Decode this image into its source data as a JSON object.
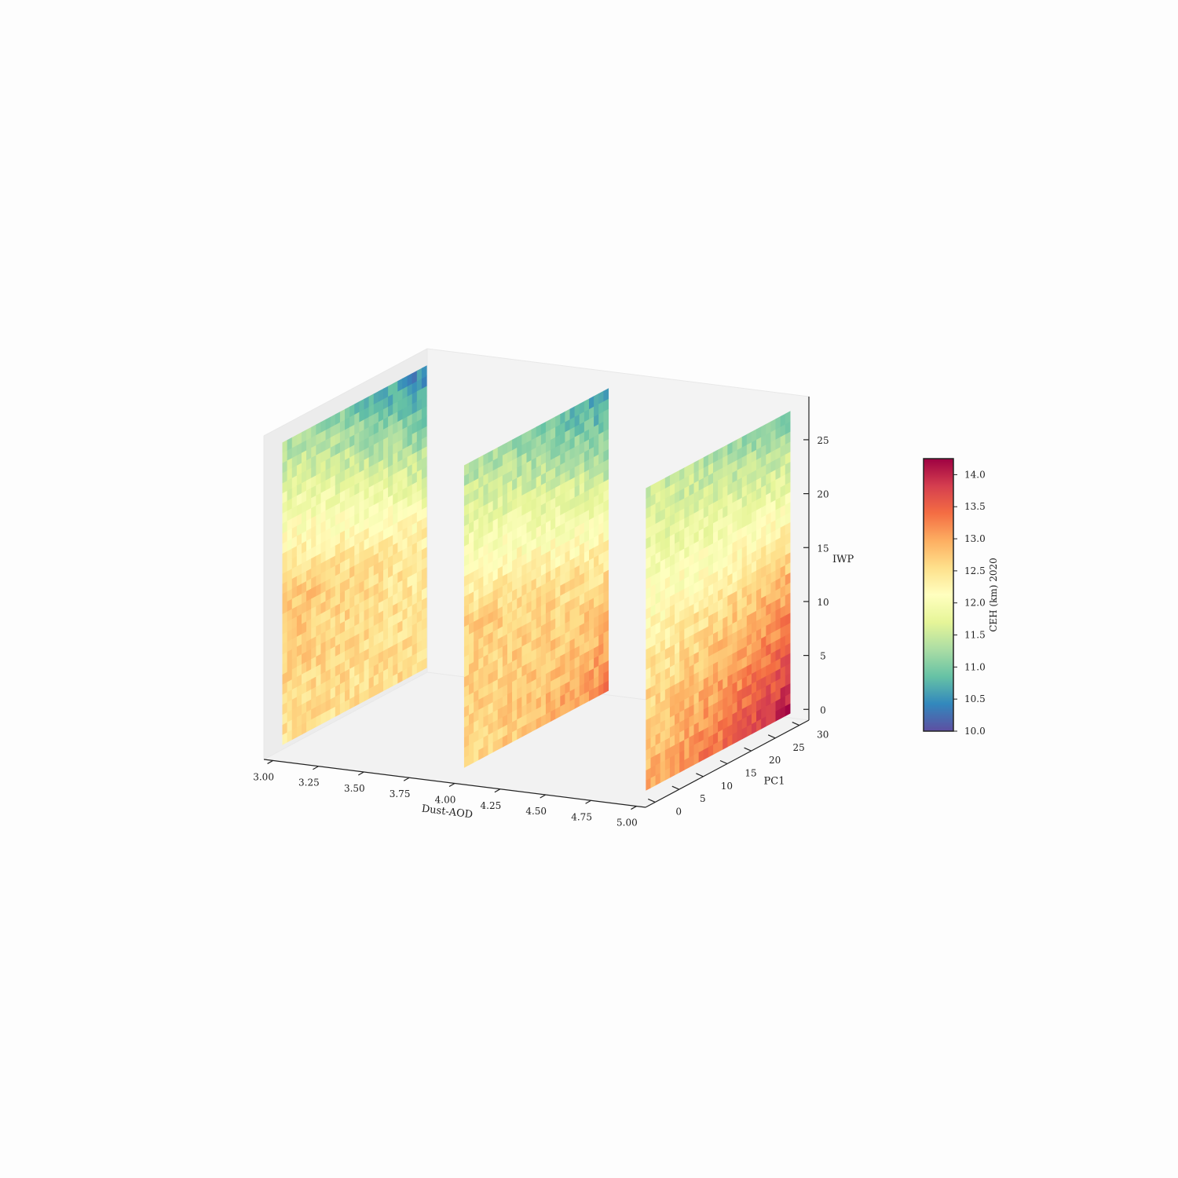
{
  "chart_data": {
    "type": "heatmap",
    "projection": "3d",
    "colormap": "Spectral_r",
    "colors": [
      "#5e4fa2",
      "#3288bd",
      "#66c2a5",
      "#abdda4",
      "#e6f598",
      "#ffffbf",
      "#fee08b",
      "#fdae61",
      "#f46d43",
      "#d53e4f",
      "#9e0142"
    ],
    "xlabel": "Dust-AOD",
    "ylabel": "PC1",
    "zlabel": "IWP",
    "x_ticks": [
      "3.00",
      "3.25",
      "3.50",
      "3.75",
      "4.00",
      "4.25",
      "4.50",
      "4.75",
      "5.00"
    ],
    "y_ticks": [
      "0",
      "5",
      "10",
      "15",
      "20",
      "25",
      "30"
    ],
    "z_ticks": [
      "0",
      "5",
      "10",
      "15",
      "20",
      "25"
    ],
    "xlim": [
      2.95,
      5.05
    ],
    "ylim": [
      -2,
      32
    ],
    "zlim": [
      -1,
      29
    ],
    "slice_positions": [
      3.0,
      4.0,
      5.0
    ],
    "grid_size": [
      30,
      30
    ],
    "colorbar": {
      "label": "CEH (km) 2020",
      "ticks": [
        "10.0",
        "10.5",
        "11.0",
        "11.5",
        "12.0",
        "12.5",
        "13.0",
        "13.5",
        "14.0"
      ],
      "range": [
        10.0,
        14.25
      ]
    },
    "slices": [
      {
        "dust_aod": 3.0,
        "ceh_low_iwp_low_pc1": 12.5,
        "ceh_low_iwp_high_pc1": 12.6,
        "ceh_mid_iwp_low_pc1": 12.8,
        "ceh_mid_iwp_high_pc1": 12.3,
        "ceh_high_iwp_low_pc1": 11.3,
        "ceh_high_iwp_high_pc1": 10.3
      },
      {
        "dust_aod": 4.0,
        "ceh_low_iwp_low_pc1": 12.6,
        "ceh_low_iwp_high_pc1": 13.3,
        "ceh_mid_iwp_low_pc1": 12.7,
        "ceh_mid_iwp_high_pc1": 12.4,
        "ceh_high_iwp_low_pc1": 11.3,
        "ceh_high_iwp_high_pc1": 10.5
      },
      {
        "dust_aod": 5.0,
        "ceh_low_iwp_low_pc1": 13.0,
        "ceh_low_iwp_high_pc1": 14.1,
        "ceh_mid_iwp_low_pc1": 12.4,
        "ceh_mid_iwp_high_pc1": 12.9,
        "ceh_high_iwp_low_pc1": 11.5,
        "ceh_high_iwp_high_pc1": 10.9
      }
    ]
  }
}
